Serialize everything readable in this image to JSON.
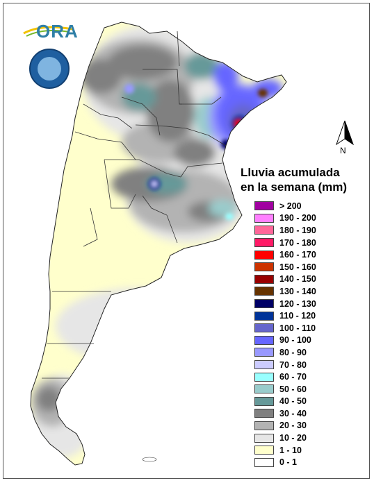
{
  "legend": {
    "title_line1": "Lluvia acumulada",
    "title_line2": "en la semana (mm)",
    "items": [
      {
        "label": "> 200",
        "color": "#a000a0"
      },
      {
        "label": "190 - 200",
        "color": "#ff80ff"
      },
      {
        "label": "180 - 190",
        "color": "#ff6699"
      },
      {
        "label": "170 - 180",
        "color": "#ff1a66"
      },
      {
        "label": "160 - 170",
        "color": "#ff0000"
      },
      {
        "label": "150 - 160",
        "color": "#cc3300"
      },
      {
        "label": "140 - 150",
        "color": "#990000"
      },
      {
        "label": "130 - 140",
        "color": "#663300"
      },
      {
        "label": "120 - 130",
        "color": "#000066"
      },
      {
        "label": "110 - 120",
        "color": "#003399"
      },
      {
        "label": "100 - 110",
        "color": "#6666cc"
      },
      {
        "label": "90 - 100",
        "color": "#6666ff"
      },
      {
        "label": "80 - 90",
        "color": "#9999ff"
      },
      {
        "label": "70 - 80",
        "color": "#ccccff"
      },
      {
        "label": "60 - 70",
        "color": "#99ffff"
      },
      {
        "label": "50 - 60",
        "color": "#99cccc"
      },
      {
        "label": "40 - 50",
        "color": "#669999"
      },
      {
        "label": "30 - 40",
        "color": "#808080"
      },
      {
        "label": "20 - 30",
        "color": "#b3b3b3"
      },
      {
        "label": "10 - 20",
        "color": "#e6e6e6"
      },
      {
        "label": "1 - 10",
        "color": "#ffffcc"
      },
      {
        "label": "0 - 1",
        "color": "#ffffff"
      }
    ]
  },
  "north_label": "N",
  "logo": {
    "text": "ORA",
    "seal_text": "SERVICIO METEOROLÓGICO NACIONAL ARGENTINA"
  }
}
